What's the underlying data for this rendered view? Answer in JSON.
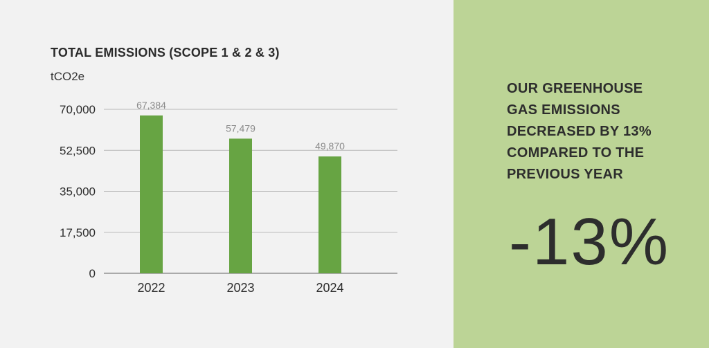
{
  "colors": {
    "background": "#f2f2f2",
    "panel_bg": "#bcd496",
    "bar": "#67a443",
    "gridline": "#b8b8b8",
    "axis": "#808080",
    "data_label": "#8a8a8a",
    "text": "#2d2d2d"
  },
  "chart_data": {
    "type": "bar",
    "title": "TOTAL EMISSIONS (SCOPE 1 & 2 & 3)",
    "ylabel": "tCO2e",
    "xlabel": "",
    "categories": [
      "2022",
      "2023",
      "2024"
    ],
    "values": [
      67384,
      57479,
      49870
    ],
    "value_labels": [
      "67,384",
      "57,479",
      "49,870"
    ],
    "ylim": [
      0,
      70000
    ],
    "yticks": [
      0,
      17500,
      35000,
      52500,
      70000
    ],
    "ytick_labels": [
      "0",
      "17,500",
      "35,000",
      "52,500",
      "70,000"
    ],
    "grid": true,
    "legend": "none"
  },
  "highlight": {
    "headline": "OUR GREENHOUSE\nGAS EMISSIONS\nDECREASED BY 13%\nCOMPARED TO THE\nPREVIOUS YEAR",
    "value": "-13%"
  }
}
